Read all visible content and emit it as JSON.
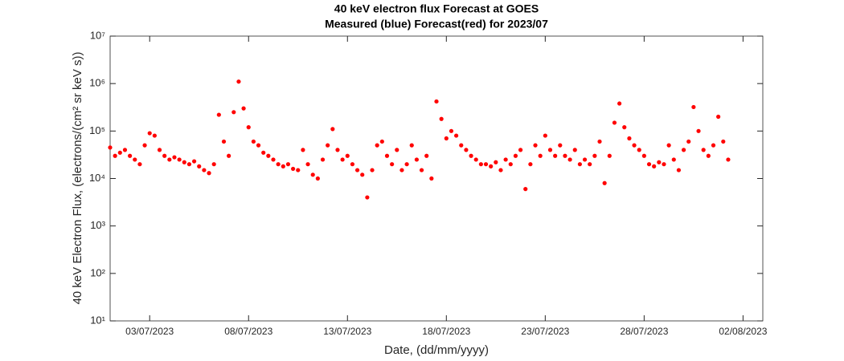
{
  "chart_data": {
    "type": "scatter",
    "title": "40 keV electron flux Forecast at GOES",
    "subtitle": "Measured (blue) Forecast(red) for 2023/07",
    "x_label": "Date, (dd/mm/yyyy)",
    "y_label": "40 keV Electron Flux, (electrons/(cm² sr keV s))",
    "log_y": true,
    "grid": false,
    "xlim": [
      "2023-07-01",
      "2023-08-03"
    ],
    "xticks": [
      {
        "value": "2023-07-03",
        "label": "03/07/2023"
      },
      {
        "value": "2023-07-08",
        "label": "08/07/2023"
      },
      {
        "value": "2023-07-13",
        "label": "13/07/2023"
      },
      {
        "value": "2023-07-18",
        "label": "18/07/2023"
      },
      {
        "value": "2023-07-23",
        "label": "23/07/2023"
      },
      {
        "value": "2023-07-28",
        "label": "28/07/2023"
      },
      {
        "value": "2023-08-02",
        "label": "02/08/2023"
      }
    ],
    "ylim": [
      10,
      10000000
    ],
    "yticks": [
      {
        "value": 10,
        "label": "10¹"
      },
      {
        "value": 100,
        "label": "10²"
      },
      {
        "value": 1000,
        "label": "10³"
      },
      {
        "value": 10000,
        "label": "10⁴"
      },
      {
        "value": 100000,
        "label": "10⁵"
      },
      {
        "value": 1000000,
        "label": "10⁶"
      },
      {
        "value": 10000000,
        "label": "10⁷"
      }
    ],
    "series": [
      {
        "name": "Forecast",
        "color": "#ff0000",
        "x": [
          "2023-07-01T00",
          "2023-07-01T06",
          "2023-07-01T12",
          "2023-07-01T18",
          "2023-07-02T00",
          "2023-07-02T06",
          "2023-07-02T12",
          "2023-07-02T18",
          "2023-07-03T00",
          "2023-07-03T06",
          "2023-07-03T12",
          "2023-07-03T18",
          "2023-07-04T00",
          "2023-07-04T06",
          "2023-07-04T12",
          "2023-07-04T18",
          "2023-07-05T00",
          "2023-07-05T06",
          "2023-07-05T12",
          "2023-07-05T18",
          "2023-07-06T00",
          "2023-07-06T06",
          "2023-07-06T12",
          "2023-07-06T18",
          "2023-07-07T00",
          "2023-07-07T06",
          "2023-07-07T12",
          "2023-07-07T18",
          "2023-07-08T00",
          "2023-07-08T06",
          "2023-07-08T12",
          "2023-07-08T18",
          "2023-07-09T00",
          "2023-07-09T06",
          "2023-07-09T12",
          "2023-07-09T18",
          "2023-07-10T00",
          "2023-07-10T06",
          "2023-07-10T12",
          "2023-07-10T18",
          "2023-07-11T00",
          "2023-07-11T06",
          "2023-07-11T12",
          "2023-07-11T18",
          "2023-07-12T00",
          "2023-07-12T06",
          "2023-07-12T12",
          "2023-07-12T18",
          "2023-07-13T00",
          "2023-07-13T06",
          "2023-07-13T12",
          "2023-07-13T18",
          "2023-07-14T00",
          "2023-07-14T06",
          "2023-07-14T12",
          "2023-07-14T18",
          "2023-07-15T00",
          "2023-07-15T06",
          "2023-07-15T12",
          "2023-07-15T18",
          "2023-07-16T00",
          "2023-07-16T06",
          "2023-07-16T12",
          "2023-07-16T18",
          "2023-07-17T00",
          "2023-07-17T06",
          "2023-07-17T12",
          "2023-07-17T18",
          "2023-07-18T00",
          "2023-07-18T06",
          "2023-07-18T12",
          "2023-07-18T18",
          "2023-07-19T00",
          "2023-07-19T06",
          "2023-07-19T12",
          "2023-07-19T18",
          "2023-07-20T00",
          "2023-07-20T06",
          "2023-07-20T12",
          "2023-07-20T18",
          "2023-07-21T00",
          "2023-07-21T06",
          "2023-07-21T12",
          "2023-07-21T18",
          "2023-07-22T00",
          "2023-07-22T06",
          "2023-07-22T12",
          "2023-07-22T18",
          "2023-07-23T00",
          "2023-07-23T06",
          "2023-07-23T12",
          "2023-07-23T18",
          "2023-07-24T00",
          "2023-07-24T06",
          "2023-07-24T12",
          "2023-07-24T18",
          "2023-07-25T00",
          "2023-07-25T06",
          "2023-07-25T12",
          "2023-07-25T18",
          "2023-07-26T00",
          "2023-07-26T06",
          "2023-07-26T12",
          "2023-07-26T18",
          "2023-07-27T00",
          "2023-07-27T06",
          "2023-07-27T12",
          "2023-07-27T18",
          "2023-07-28T00",
          "2023-07-28T06",
          "2023-07-28T12",
          "2023-07-28T18",
          "2023-07-29T00",
          "2023-07-29T06",
          "2023-07-29T12",
          "2023-07-29T18",
          "2023-07-30T00",
          "2023-07-30T06",
          "2023-07-30T12",
          "2023-07-30T18",
          "2023-07-31T00",
          "2023-07-31T06",
          "2023-07-31T12",
          "2023-07-31T18",
          "2023-08-01T00",
          "2023-08-01T06"
        ],
        "values": [
          45000,
          30000,
          35000,
          40000,
          30000,
          25000,
          20000,
          50000,
          90000,
          80000,
          40000,
          30000,
          25000,
          28000,
          25000,
          22000,
          20000,
          23000,
          18000,
          15000,
          13000,
          20000,
          220000,
          60000,
          30000,
          250000,
          1100000,
          300000,
          120000,
          60000,
          50000,
          35000,
          30000,
          25000,
          20000,
          18000,
          20000,
          16000,
          15000,
          40000,
          20000,
          12000,
          10000,
          25000,
          50000,
          110000,
          40000,
          25000,
          30000,
          20000,
          15000,
          12000,
          4000,
          15000,
          50000,
          60000,
          30000,
          20000,
          40000,
          15000,
          20000,
          50000,
          25000,
          15000,
          30000,
          10000,
          420000,
          180000,
          70000,
          100000,
          80000,
          50000,
          40000,
          30000,
          25000,
          20000,
          20000,
          18000,
          22000,
          15000,
          25000,
          20000,
          30000,
          40000,
          6000,
          20000,
          50000,
          30000,
          80000,
          40000,
          30000,
          50000,
          30000,
          25000,
          40000,
          20000,
          25000,
          20000,
          30000,
          60000,
          8000,
          30000,
          150000,
          380000,
          120000,
          70000,
          50000,
          40000,
          30000,
          20000,
          18000,
          22000,
          20000,
          50000,
          25000,
          15000,
          40000,
          60000,
          320000,
          100000,
          40000,
          30000,
          50000,
          200000,
          60000,
          25000
        ]
      }
    ]
  }
}
